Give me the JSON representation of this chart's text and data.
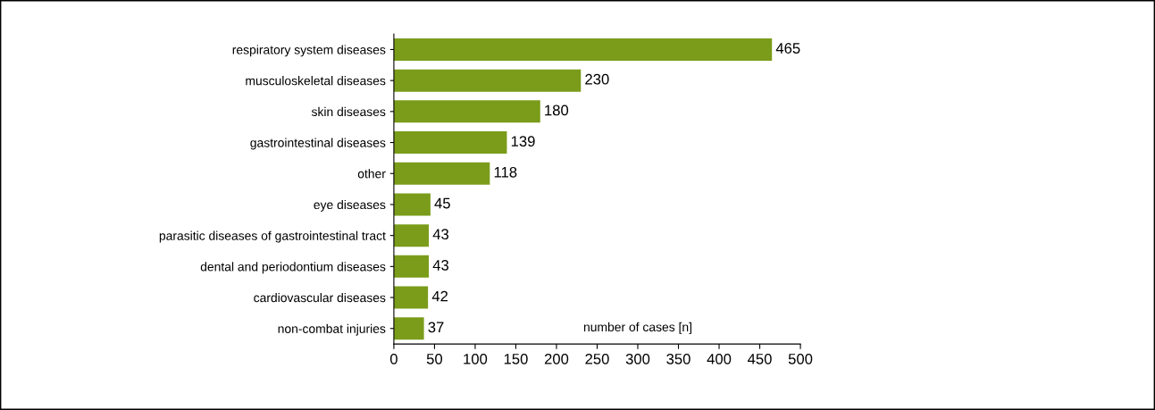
{
  "chart_data": {
    "type": "bar",
    "orientation": "horizontal",
    "xlabel": "number of cases [n]",
    "categories": [
      "respiratory system diseases",
      "musculoskeletal diseases",
      "skin diseases",
      "gastrointestinal diseases",
      "other",
      "eye diseases",
      "parasitic diseases of gastrointestinal tract",
      "dental and periodontium diseases",
      "cardiovascular diseases",
      "non-combat injuries"
    ],
    "values": [
      465,
      230,
      180,
      139,
      118,
      45,
      43,
      43,
      42,
      37
    ],
    "color": "#7a9c1a",
    "data_labels": true,
    "xlim": [
      0,
      500
    ],
    "xticks": [
      0,
      50,
      100,
      150,
      200,
      250,
      300,
      350,
      400,
      450,
      500
    ],
    "grid": false,
    "legend": false
  }
}
